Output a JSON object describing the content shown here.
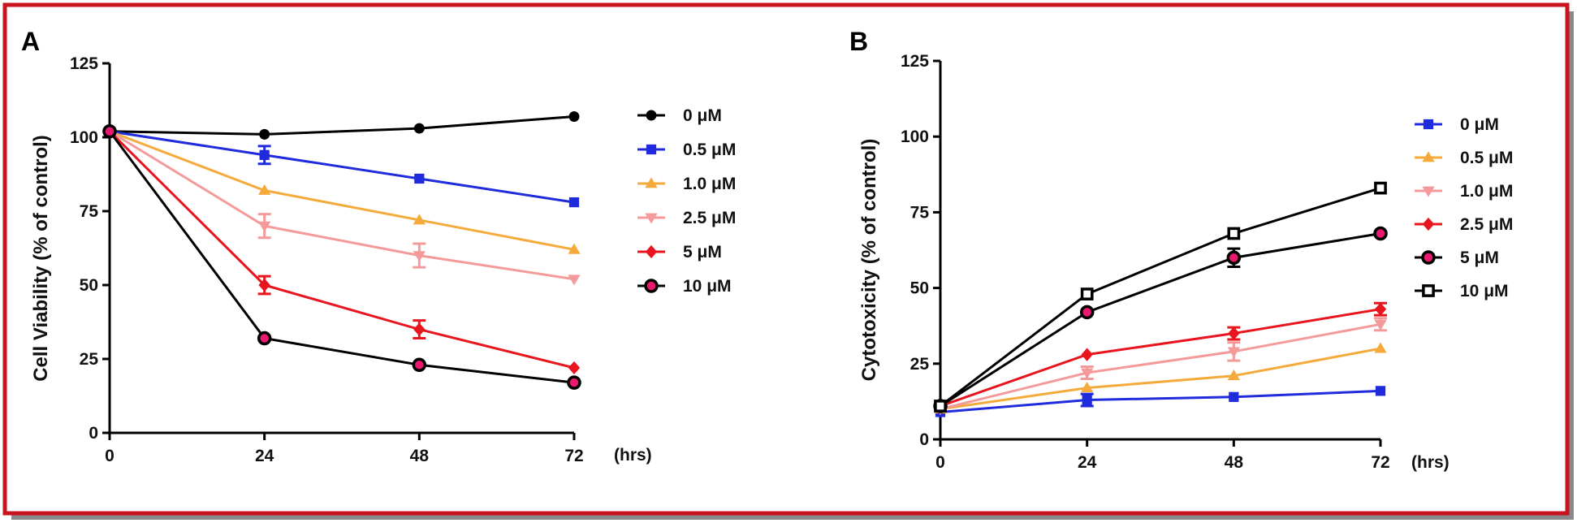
{
  "colors": {
    "frame": "#c8141e",
    "shadow": "#8a8a8a"
  },
  "chart_data": [
    {
      "panel_label": "A",
      "type": "line",
      "ylabel": "Cell Viability (% of control)",
      "xunit": "(hrs)",
      "x": [
        0,
        24,
        48,
        72
      ],
      "xticks": [
        "0",
        "24",
        "48",
        "72"
      ],
      "yticks": [
        "0",
        "25",
        "50",
        "75",
        "100",
        "125"
      ],
      "ylim": [
        0,
        125
      ],
      "legend": "right",
      "series": [
        {
          "name": "0 μM",
          "color": "#000000",
          "marker": "circle",
          "values": [
            102,
            101,
            103,
            107
          ],
          "err": [
            0,
            0,
            0,
            0
          ]
        },
        {
          "name": "0.5 μM",
          "color": "#1f2bdc",
          "marker": "square",
          "values": [
            102,
            94,
            86,
            78
          ],
          "err": [
            0,
            3,
            0,
            0
          ]
        },
        {
          "name": "1.0 μM",
          "color": "#f5aa3c",
          "marker": "triangle-up",
          "values": [
            102,
            82,
            72,
            62
          ],
          "err": [
            0,
            0,
            0,
            0
          ]
        },
        {
          "name": "2.5 μM",
          "color": "#f59a9a",
          "marker": "triangle-down",
          "values": [
            102,
            70,
            60,
            52
          ],
          "err": [
            0,
            4,
            4,
            0
          ]
        },
        {
          "name": "5 μM",
          "color": "#e8141e",
          "marker": "diamond",
          "values": [
            102,
            50,
            35,
            22
          ],
          "err": [
            0,
            3,
            3,
            0
          ]
        },
        {
          "name": "10 μM",
          "color": "#000000",
          "marker": "circle-pink",
          "values": [
            102,
            32,
            23,
            17
          ],
          "err": [
            0,
            0,
            0,
            0
          ]
        }
      ]
    },
    {
      "panel_label": "B",
      "type": "line",
      "ylabel": "Cytotoxicity (% of control)",
      "xunit": "(hrs)",
      "x": [
        0,
        24,
        48,
        72
      ],
      "xticks": [
        "0",
        "24",
        "48",
        "72"
      ],
      "yticks": [
        "0",
        "25",
        "50",
        "75",
        "100",
        "125"
      ],
      "ylim": [
        0,
        125
      ],
      "legend": "right",
      "series": [
        {
          "name": "0 μM",
          "color": "#1f2bdc",
          "marker": "square",
          "values": [
            9,
            13,
            14,
            16
          ],
          "err": [
            0,
            2,
            0,
            0
          ]
        },
        {
          "name": "0.5 μM",
          "color": "#f5aa3c",
          "marker": "triangle-up",
          "values": [
            10,
            17,
            21,
            30
          ],
          "err": [
            0,
            0,
            0,
            0
          ]
        },
        {
          "name": "1.0 μM",
          "color": "#f59a9a",
          "marker": "triangle-down",
          "values": [
            10,
            22,
            29,
            38
          ],
          "err": [
            0,
            2,
            3,
            2
          ]
        },
        {
          "name": "2.5 μM",
          "color": "#e8141e",
          "marker": "diamond",
          "values": [
            11,
            28,
            35,
            43
          ],
          "err": [
            0,
            0,
            2,
            2
          ]
        },
        {
          "name": "5 μM",
          "color": "#000000",
          "marker": "circle-pink",
          "values": [
            11,
            42,
            60,
            68
          ],
          "err": [
            0,
            0,
            3,
            0
          ]
        },
        {
          "name": "10 μM",
          "color": "#000000",
          "marker": "square-open",
          "values": [
            11,
            48,
            68,
            83
          ],
          "err": [
            0,
            0,
            0,
            0
          ]
        }
      ]
    }
  ]
}
